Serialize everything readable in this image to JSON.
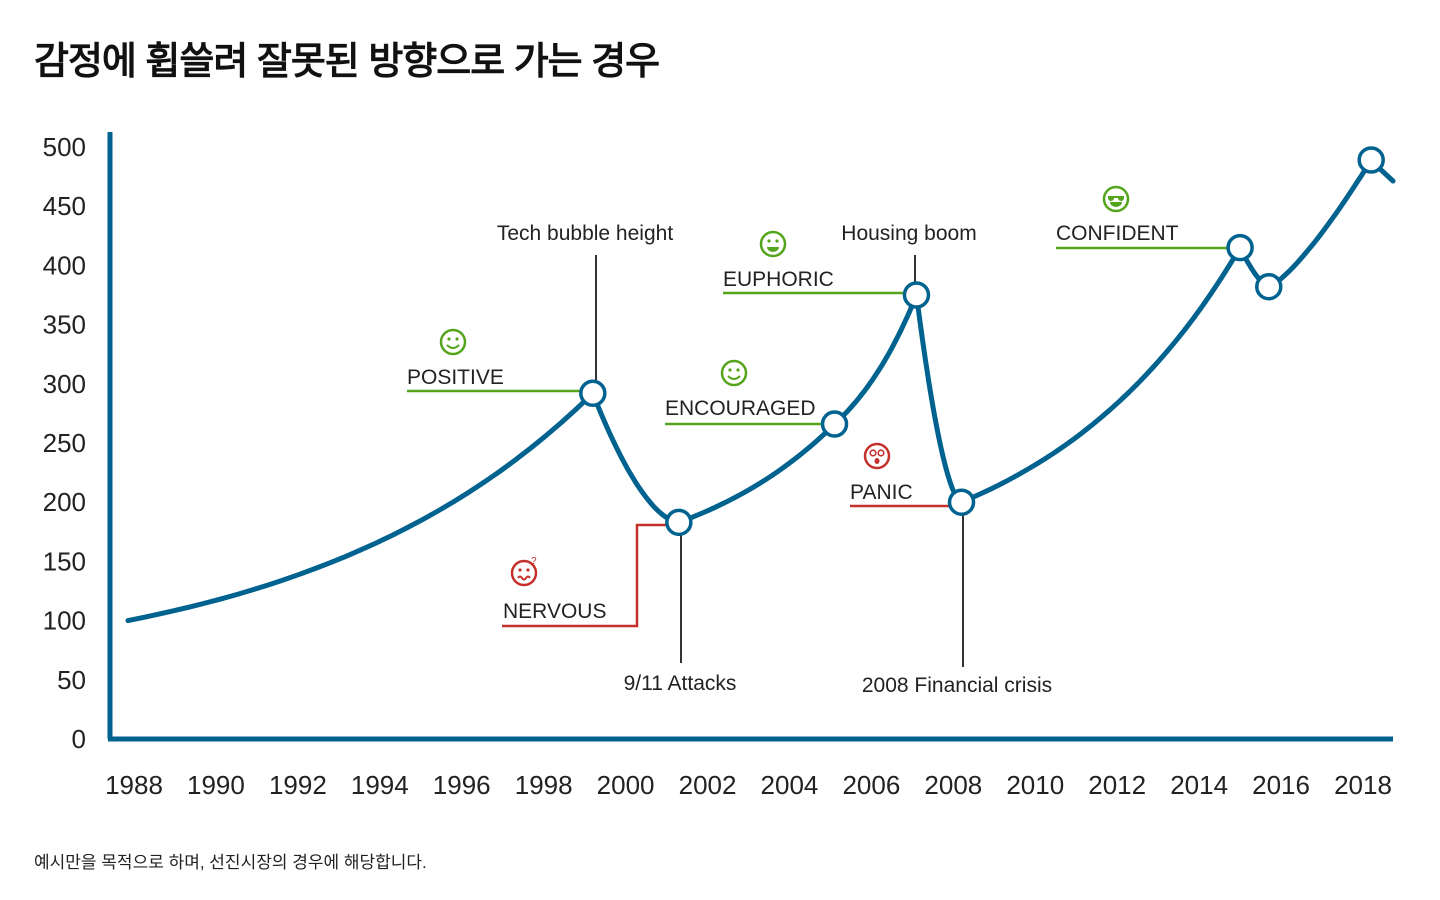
{
  "title": "감정에 휩쓸려 잘못된 방향으로 가는 경우",
  "footnote": "예시만을 목적으로 하며, 선진시장의 경우에 해당합니다.",
  "colors": {
    "line": "#00628F",
    "axis": "#00628F",
    "positive": "#55A51C",
    "negative": "#C4312B",
    "leader": "#333333"
  },
  "chart_data": {
    "type": "line",
    "title": "",
    "xlabel": "",
    "ylabel": "",
    "xlim": [
      1988,
      2018
    ],
    "ylim": [
      0,
      500
    ],
    "x_ticks": [
      "1988",
      "1990",
      "1992",
      "1994",
      "1996",
      "1998",
      "2000",
      "2002",
      "2004",
      "2006",
      "2008",
      "2010",
      "2012",
      "2014",
      "2016",
      "2018"
    ],
    "y_ticks": [
      "0",
      "50",
      "100",
      "150",
      "200",
      "250",
      "300",
      "350",
      "400",
      "450",
      "500"
    ],
    "grid": false,
    "series": [
      {
        "x": [
          1988,
          1999.2,
          2001.3,
          2005.1,
          2007.1,
          2008.2,
          2015.0,
          2015.7,
          2018.2
        ],
        "y": [
          100,
          292,
          183,
          266,
          375,
          200,
          415,
          382,
          489
        ]
      }
    ],
    "end_marker": "magnifier-icon",
    "events": [
      {
        "label": "Tech bubble height",
        "point": 1
      },
      {
        "label": "9/11 Attacks",
        "point": 2
      },
      {
        "label": "Housing boom",
        "point": 4
      },
      {
        "label": "2008 Financial crisis",
        "point": 5
      }
    ],
    "sentiments": [
      {
        "label": "POSITIVE",
        "icon": "smile-icon",
        "tone": "positive",
        "point": 1
      },
      {
        "label": "NERVOUS",
        "icon": "worried-face-icon",
        "tone": "negative",
        "point": 2
      },
      {
        "label": "ENCOURAGED",
        "icon": "smile-icon",
        "tone": "positive",
        "point": 3
      },
      {
        "label": "EUPHORIC",
        "icon": "grin-icon",
        "tone": "positive",
        "point": 4
      },
      {
        "label": "PANIC",
        "icon": "shocked-face-icon",
        "tone": "negative",
        "point": 5
      },
      {
        "label": "CONFIDENT",
        "icon": "sunglasses-face-icon",
        "tone": "positive",
        "point": 6
      }
    ]
  }
}
